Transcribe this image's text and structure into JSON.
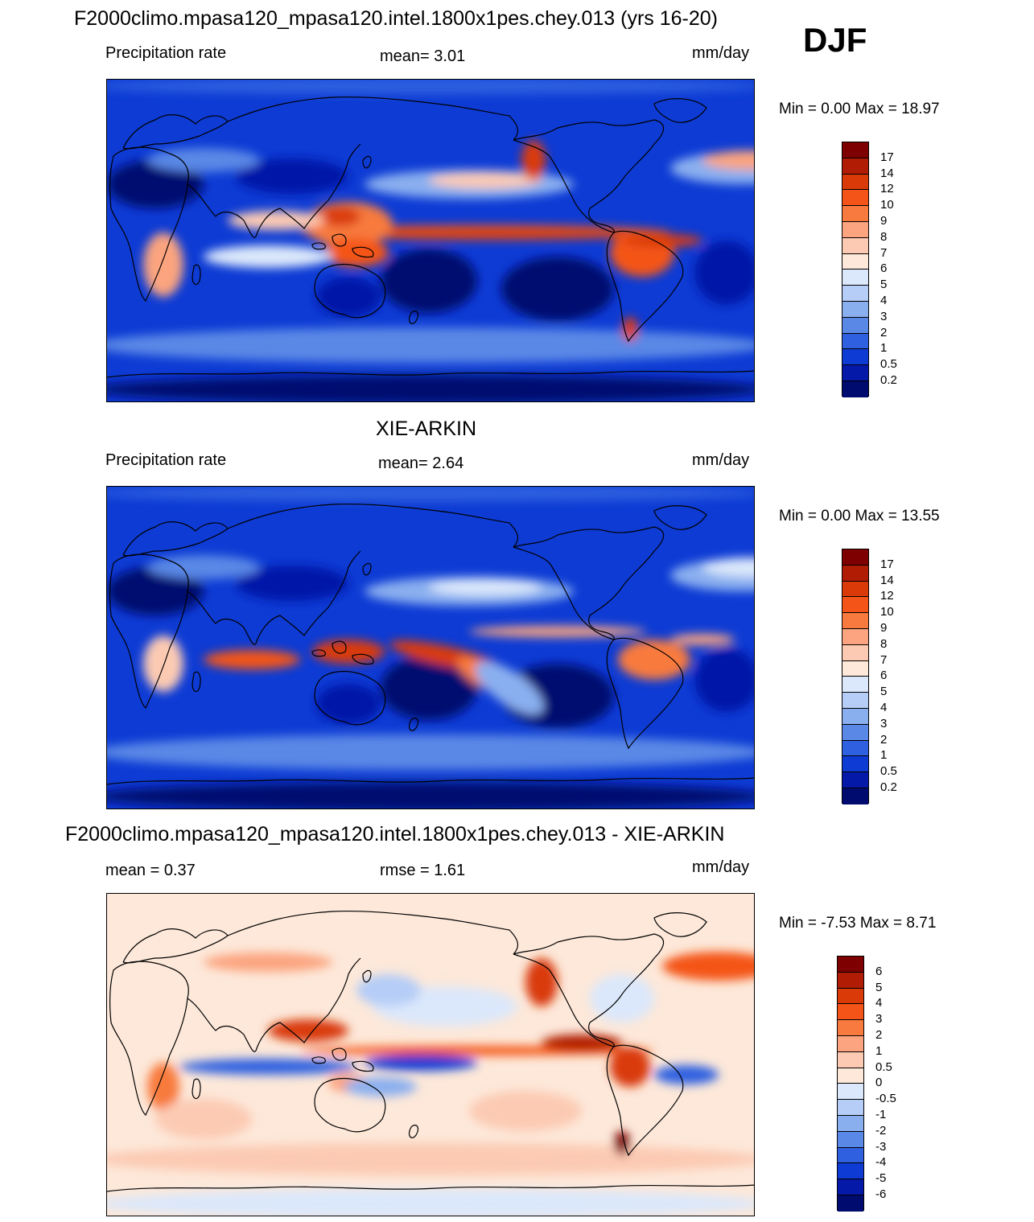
{
  "figure": {
    "season": "DJF"
  },
  "panels": [
    {
      "id": "model",
      "title": "F2000climo.mpasa120_mpasa120.intel.1800x1pes.chey.013 (yrs 16-20)",
      "left_label": "Precipitation rate",
      "center_label": "mean=   3.01",
      "units": "mm/day",
      "minmax": "Min =   0.00 Max =  18.97",
      "colorbar_labels": [
        "17",
        "14",
        "12",
        "10",
        "9",
        "8",
        "7",
        "6",
        "5",
        "4",
        "3",
        "2",
        "1",
        "0.5",
        "0.2"
      ],
      "colorbar_colors": [
        "#7f0000",
        "#b01c04",
        "#d93a07",
        "#f45418",
        "#f87a3e",
        "#fba47f",
        "#fccab3",
        "#fde8d9",
        "#dbe8fb",
        "#b6cdf7",
        "#8aafef",
        "#5a88e6",
        "#2f60e0",
        "#0d3bd4",
        "#0519a8",
        "#000b70"
      ]
    },
    {
      "id": "obs",
      "title": "XIE-ARKIN",
      "left_label": "Precipitation rate",
      "center_label": "mean=   2.64",
      "units": "mm/day",
      "minmax": "Min =   0.00 Max =  13.55",
      "colorbar_labels": [
        "17",
        "14",
        "12",
        "10",
        "9",
        "8",
        "7",
        "6",
        "5",
        "4",
        "3",
        "2",
        "1",
        "0.5",
        "0.2"
      ],
      "colorbar_colors": [
        "#7f0000",
        "#b01c04",
        "#d93a07",
        "#f45418",
        "#f87a3e",
        "#fba47f",
        "#fccab3",
        "#fde8d9",
        "#dbe8fb",
        "#b6cdf7",
        "#8aafef",
        "#5a88e6",
        "#2f60e0",
        "#0d3bd4",
        "#0519a8",
        "#000b70"
      ]
    },
    {
      "id": "diff",
      "title": "F2000climo.mpasa120_mpasa120.intel.1800x1pes.chey.013 - XIE-ARKIN",
      "left_label": "mean =   0.37",
      "center_label": "rmse =   1.61",
      "units": "mm/day",
      "minmax": "Min =  -7.53 Max =   8.71",
      "colorbar_labels": [
        "6",
        "5",
        "4",
        "3",
        "2",
        "1",
        "0.5",
        "0",
        "-0.5",
        "-1",
        "-2",
        "-3",
        "-4",
        "-5",
        "-6"
      ],
      "colorbar_colors": [
        "#7f0000",
        "#b01c04",
        "#d93a07",
        "#f45418",
        "#f87a3e",
        "#fba47f",
        "#fccab3",
        "#fde8d9",
        "#dbe8fb",
        "#b6cdf7",
        "#8aafef",
        "#5a88e6",
        "#2f60e0",
        "#0d3bd4",
        "#0519a8",
        "#000b70"
      ]
    }
  ]
}
